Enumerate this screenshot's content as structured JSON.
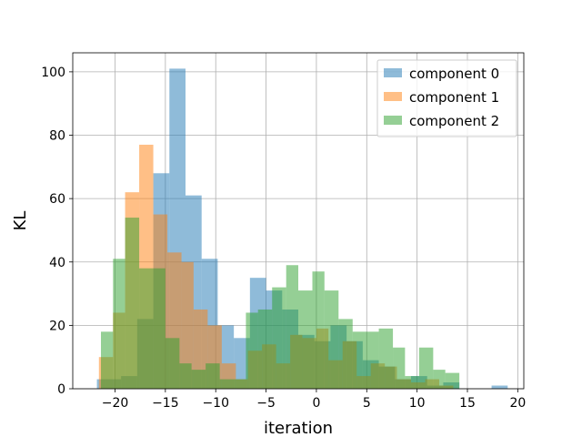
{
  "chart_data": {
    "type": "histogram",
    "xlabel": "iteration",
    "ylabel": "KL",
    "xlim": [
      -24.2,
      20.6
    ],
    "ylim": [
      0,
      106
    ],
    "xticks": [
      -20,
      -15,
      -10,
      -5,
      0,
      5,
      10,
      15,
      20
    ],
    "yticks": [
      0,
      20,
      40,
      60,
      80,
      100
    ],
    "xtick_labels": [
      "−20",
      "−15",
      "−10",
      "−5",
      "0",
      "5",
      "10",
      "15",
      "20"
    ],
    "ytick_labels": [
      "0",
      "20",
      "40",
      "60",
      "80",
      "100"
    ],
    "grid": true,
    "legend": "top-right",
    "series": [
      {
        "name": "component 0",
        "color": "#1f77b4",
        "opacity": 0.5,
        "bins": [
          {
            "x0": -21.8,
            "x1": -21.0,
            "y": 3
          },
          {
            "x0": -21.0,
            "x1": -19.4,
            "y": 3
          },
          {
            "x0": -19.4,
            "x1": -17.8,
            "y": 4
          },
          {
            "x0": -17.8,
            "x1": -16.2,
            "y": 22
          },
          {
            "x0": -16.2,
            "x1": -14.6,
            "y": 68
          },
          {
            "x0": -14.6,
            "x1": -13.0,
            "y": 101
          },
          {
            "x0": -13.0,
            "x1": -11.4,
            "y": 61
          },
          {
            "x0": -11.4,
            "x1": -9.8,
            "y": 41
          },
          {
            "x0": -9.8,
            "x1": -8.2,
            "y": 20
          },
          {
            "x0": -8.2,
            "x1": -6.6,
            "y": 16
          },
          {
            "x0": -6.6,
            "x1": -5.0,
            "y": 35
          },
          {
            "x0": -5.0,
            "x1": -3.4,
            "y": 31
          },
          {
            "x0": -3.4,
            "x1": -1.8,
            "y": 25
          },
          {
            "x0": -1.8,
            "x1": -0.2,
            "y": 17
          },
          {
            "x0": -0.2,
            "x1": 1.4,
            "y": 15
          },
          {
            "x0": 1.4,
            "x1": 3.0,
            "y": 20
          },
          {
            "x0": 3.0,
            "x1": 4.6,
            "y": 15
          },
          {
            "x0": 4.6,
            "x1": 6.2,
            "y": 9
          },
          {
            "x0": 6.2,
            "x1": 7.8,
            "y": 7
          },
          {
            "x0": 7.8,
            "x1": 9.4,
            "y": 3
          },
          {
            "x0": 9.4,
            "x1": 11.0,
            "y": 4
          },
          {
            "x0": 11.0,
            "x1": 12.6,
            "y": 1
          },
          {
            "x0": 12.6,
            "x1": 14.2,
            "y": 2
          },
          {
            "x0": 17.4,
            "x1": 19.0,
            "y": 1
          }
        ]
      },
      {
        "name": "component 1",
        "color": "#ff7f0e",
        "opacity": 0.5,
        "bins": [
          {
            "x0": -21.6,
            "x1": -20.2,
            "y": 10
          },
          {
            "x0": -20.2,
            "x1": -19.0,
            "y": 24
          },
          {
            "x0": -19.0,
            "x1": -17.6,
            "y": 62
          },
          {
            "x0": -17.6,
            "x1": -16.2,
            "y": 77
          },
          {
            "x0": -16.2,
            "x1": -14.8,
            "y": 55
          },
          {
            "x0": -14.8,
            "x1": -13.4,
            "y": 43
          },
          {
            "x0": -13.4,
            "x1": -12.2,
            "y": 40
          },
          {
            "x0": -12.2,
            "x1": -10.8,
            "y": 25
          },
          {
            "x0": -10.8,
            "x1": -9.4,
            "y": 20
          },
          {
            "x0": -9.4,
            "x1": -8.0,
            "y": 8
          },
          {
            "x0": -8.0,
            "x1": -6.8,
            "y": 3
          },
          {
            "x0": -6.8,
            "x1": -5.4,
            "y": 12
          },
          {
            "x0": -5.4,
            "x1": -4.0,
            "y": 14
          },
          {
            "x0": -4.0,
            "x1": -2.6,
            "y": 8
          },
          {
            "x0": -2.6,
            "x1": -1.4,
            "y": 17
          },
          {
            "x0": -1.4,
            "x1": 0.0,
            "y": 16
          },
          {
            "x0": 0.0,
            "x1": 1.2,
            "y": 19
          },
          {
            "x0": 1.2,
            "x1": 2.6,
            "y": 9
          },
          {
            "x0": 2.6,
            "x1": 4.0,
            "y": 15
          },
          {
            "x0": 4.0,
            "x1": 5.4,
            "y": 4
          },
          {
            "x0": 5.4,
            "x1": 6.8,
            "y": 8
          },
          {
            "x0": 6.8,
            "x1": 8.0,
            "y": 7
          },
          {
            "x0": 8.0,
            "x1": 9.4,
            "y": 3
          },
          {
            "x0": 9.4,
            "x1": 10.8,
            "y": 2
          },
          {
            "x0": 10.8,
            "x1": 12.2,
            "y": 3
          },
          {
            "x0": 12.2,
            "x1": 13.6,
            "y": 1
          }
        ]
      },
      {
        "name": "component 2",
        "color": "#2ca02c",
        "opacity": 0.5,
        "bins": [
          {
            "x0": -21.4,
            "x1": -20.2,
            "y": 18
          },
          {
            "x0": -20.2,
            "x1": -19.0,
            "y": 41
          },
          {
            "x0": -19.0,
            "x1": -17.6,
            "y": 54
          },
          {
            "x0": -17.6,
            "x1": -16.2,
            "y": 38
          },
          {
            "x0": -16.2,
            "x1": -15.0,
            "y": 38
          },
          {
            "x0": -15.0,
            "x1": -13.6,
            "y": 16
          },
          {
            "x0": -13.6,
            "x1": -12.4,
            "y": 8
          },
          {
            "x0": -12.4,
            "x1": -11.0,
            "y": 6
          },
          {
            "x0": -11.0,
            "x1": -9.6,
            "y": 8
          },
          {
            "x0": -9.6,
            "x1": -8.4,
            "y": 3
          },
          {
            "x0": -8.4,
            "x1": -7.0,
            "y": 3
          },
          {
            "x0": -7.0,
            "x1": -5.8,
            "y": 24
          },
          {
            "x0": -5.8,
            "x1": -4.4,
            "y": 25
          },
          {
            "x0": -4.4,
            "x1": -3.0,
            "y": 32
          },
          {
            "x0": -3.0,
            "x1": -1.8,
            "y": 39
          },
          {
            "x0": -1.8,
            "x1": -0.4,
            "y": 31
          },
          {
            "x0": -0.4,
            "x1": 0.8,
            "y": 37
          },
          {
            "x0": 0.8,
            "x1": 2.2,
            "y": 31
          },
          {
            "x0": 2.2,
            "x1": 3.6,
            "y": 22
          },
          {
            "x0": 3.6,
            "x1": 4.8,
            "y": 18
          },
          {
            "x0": 4.8,
            "x1": 6.2,
            "y": 18
          },
          {
            "x0": 6.2,
            "x1": 7.6,
            "y": 19
          },
          {
            "x0": 7.6,
            "x1": 8.8,
            "y": 13
          },
          {
            "x0": 8.8,
            "x1": 10.2,
            "y": 4
          },
          {
            "x0": 10.2,
            "x1": 11.6,
            "y": 13
          },
          {
            "x0": 11.6,
            "x1": 12.8,
            "y": 6
          },
          {
            "x0": 12.8,
            "x1": 14.2,
            "y": 5
          }
        ]
      }
    ]
  }
}
